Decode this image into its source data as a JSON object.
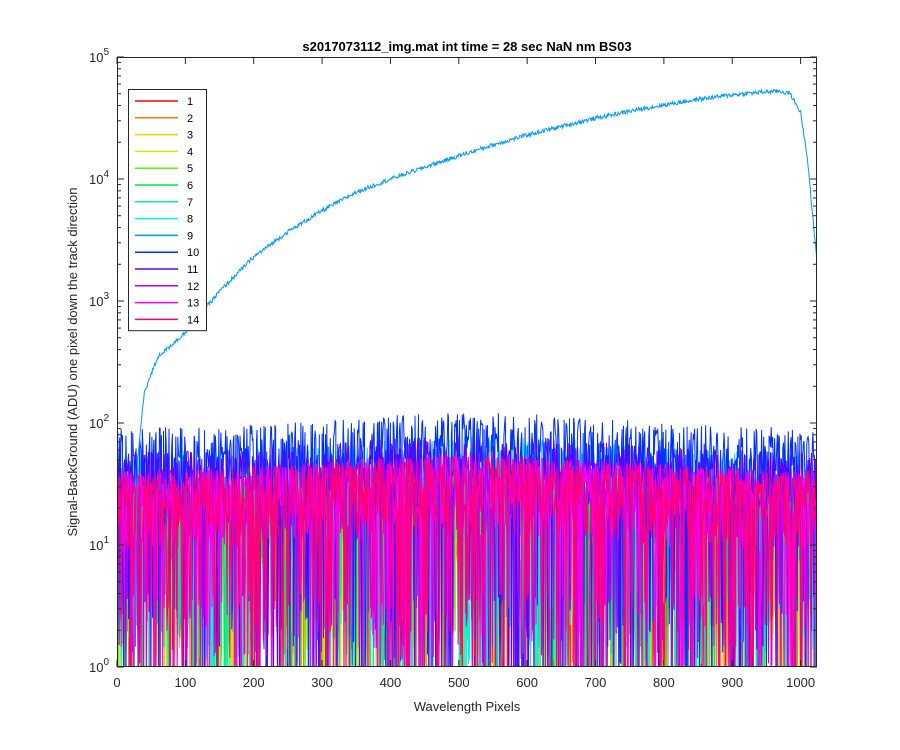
{
  "chart_data": {
    "type": "line",
    "title": "s2017073112_img.mat int time = 28 sec  NaN nm BS03",
    "xlabel": "Wavelength Pixels",
    "ylabel": "Signal-BackGround (ADU) one pixel down the track direction",
    "xlim": [
      0,
      1024
    ],
    "ylim": [
      1,
      100000
    ],
    "yscale": "log",
    "grid": false,
    "legend_position": "top-left",
    "x_ticks": [
      0,
      100,
      200,
      300,
      400,
      500,
      600,
      700,
      800,
      900,
      1000
    ],
    "y_ticks": [
      {
        "value": 1,
        "base": "10",
        "exp": "0"
      },
      {
        "value": 10,
        "base": "10",
        "exp": "1"
      },
      {
        "value": 100,
        "base": "10",
        "exp": "2"
      },
      {
        "value": 1000,
        "base": "10",
        "exp": "3"
      },
      {
        "value": 10000,
        "base": "10",
        "exp": "4"
      },
      {
        "value": 100000,
        "base": "10",
        "exp": "5"
      }
    ],
    "series": [
      {
        "name": "1",
        "color": "#ff0000",
        "values_summary": "noise",
        "typical": 15
      },
      {
        "name": "2",
        "color": "#ff7a00",
        "values_summary": "noise",
        "typical": 15
      },
      {
        "name": "3",
        "color": "#f7d000",
        "values_summary": "noise",
        "typical": 15
      },
      {
        "name": "4",
        "color": "#c8f000",
        "values_summary": "noise",
        "typical": 15
      },
      {
        "name": "5",
        "color": "#66f200",
        "values_summary": "noise",
        "typical": 18
      },
      {
        "name": "6",
        "color": "#00e84a",
        "values_summary": "noise",
        "typical": 18
      },
      {
        "name": "7",
        "color": "#00f0a0",
        "values_summary": "noise",
        "typical": 20
      },
      {
        "name": "8",
        "color": "#00f0f0",
        "values_summary": "noise",
        "typical": 35
      },
      {
        "name": "9",
        "color": "#0099ff",
        "values_summary": "signal",
        "x": [
          0,
          25,
          30,
          40,
          60,
          100,
          150,
          200,
          250,
          300,
          350,
          400,
          450,
          500,
          550,
          600,
          650,
          700,
          750,
          800,
          850,
          900,
          950,
          970,
          985,
          1000,
          1010,
          1020,
          1024
        ],
        "y": [
          1,
          1,
          50,
          180,
          350,
          550,
          1200,
          2300,
          3700,
          5500,
          7800,
          10000,
          12500,
          15500,
          19000,
          23000,
          27000,
          31500,
          36000,
          40500,
          45000,
          49000,
          52000,
          52500,
          50000,
          35000,
          15000,
          3500,
          2200
        ]
      },
      {
        "name": "10",
        "color": "#0030ff",
        "values_summary": "noise",
        "typical": 55
      },
      {
        "name": "11",
        "color": "#5a00ff",
        "values_summary": "noise",
        "typical": 35
      },
      {
        "name": "12",
        "color": "#b000ff",
        "values_summary": "noise",
        "typical": 25
      },
      {
        "name": "13",
        "color": "#ff00e0",
        "values_summary": "noise",
        "typical": 25
      },
      {
        "name": "14",
        "color": "#ff007a",
        "values_summary": "noise",
        "typical": 25
      }
    ]
  }
}
